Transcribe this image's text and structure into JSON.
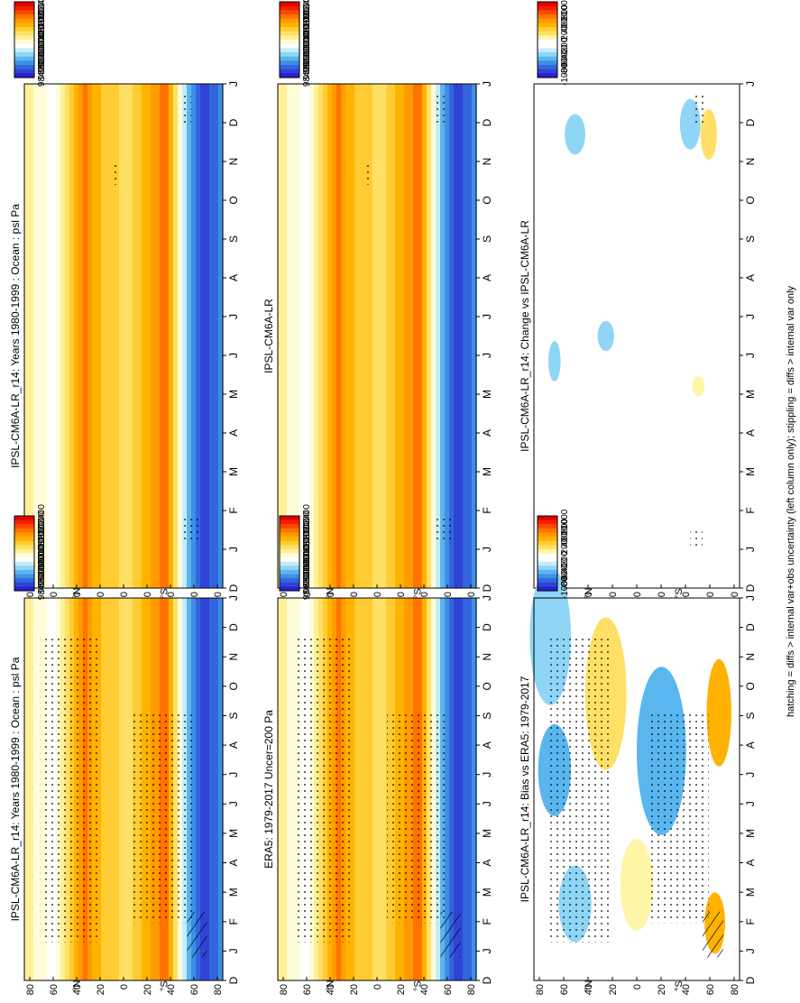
{
  "figure": {
    "footer": "hatching = diffs > internal var+obs uncertainty (left column only); stippling = diffs > internal var only"
  },
  "colors": {
    "abs": [
      "#e60000",
      "#f42000",
      "#fb4a00",
      "#ff7300",
      "#ff9a00",
      "#ffb300",
      "#ffcc33",
      "#ffe066",
      "#fff099",
      "#fffcd9",
      "#ffffff",
      "#c6ecfb",
      "#8fd5f5",
      "#5ab6ee",
      "#3f8fe5",
      "#3366dd",
      "#2f44d6",
      "#2a1fcf"
    ],
    "diff": [
      "#e60000",
      "#f42000",
      "#fb4a00",
      "#ff7300",
      "#ff9a00",
      "#ffb300",
      "#ffcc33",
      "#ffe066",
      "#fff5a6",
      "#ffffff",
      "#ffffff",
      "#c6ecfb",
      "#8fd5f5",
      "#5ab6ee",
      "#3f8fe5",
      "#3366dd",
      "#2f44d6",
      "#2a1fcf"
    ]
  },
  "chart_data": [
    {
      "id": "p1",
      "type": "heatmap",
      "title": "IPSL-CM6A-LR_r14: Years 1980-1999 : Ocean : psl Pa",
      "x_ticks": [
        "J",
        "F",
        "M",
        "A",
        "M",
        "J",
        "J",
        "A",
        "S",
        "O",
        "N",
        "D",
        "J"
      ],
      "y_ticks": [
        "80",
        "60",
        "40",
        "20",
        "0",
        "20",
        "40",
        "60",
        "80"
      ],
      "y_extra": [
        "°N",
        "°S"
      ],
      "x_left": "D",
      "colorbar": [
        "102400",
        "102000",
        "101600",
        "101200",
        "100800",
        "100400",
        "100000",
        "99600",
        "99200",
        "98800",
        "98400"
      ],
      "palette": "abs"
    },
    {
      "id": "p2",
      "type": "heatmap",
      "title": "IPSL-CM6A-LR_r14: Years 1980-1999 : Ocean : psl Pa",
      "x_ticks": [
        "J",
        "F",
        "M",
        "A",
        "M",
        "J",
        "J",
        "A",
        "S",
        "O",
        "N",
        "D",
        "J"
      ],
      "y_ticks": [
        "80",
        "60",
        "40",
        "20",
        "0",
        "20",
        "40",
        "60",
        "80"
      ],
      "y_extra": [
        "°N",
        "°S"
      ],
      "x_left": "D",
      "colorbar": [
        "102400",
        "102000",
        "101600",
        "101200",
        "100800",
        "100400",
        "100000",
        "99600",
        "99200",
        "98800",
        "98400"
      ],
      "palette": "abs"
    },
    {
      "id": "p3",
      "type": "heatmap",
      "title": "ERA5: 1979-2017 Uncer=200 Pa",
      "x_ticks": [
        "J",
        "F",
        "M",
        "A",
        "M",
        "J",
        "J",
        "A",
        "S",
        "O",
        "N",
        "D",
        "J"
      ],
      "y_ticks": [
        "80",
        "60",
        "40",
        "20",
        "0",
        "20",
        "40",
        "60",
        "80"
      ],
      "y_extra": [
        "°N",
        "°S"
      ],
      "x_left": "D",
      "colorbar": [
        "102400",
        "102000",
        "101600",
        "101200",
        "100800",
        "100400",
        "100000",
        "99600",
        "99200",
        "98800",
        "98400"
      ],
      "palette": "abs"
    },
    {
      "id": "p4",
      "type": "heatmap",
      "title": "IPSL-CM6A-LR",
      "x_ticks": [
        "J",
        "F",
        "M",
        "A",
        "M",
        "J",
        "J",
        "A",
        "S",
        "O",
        "N",
        "D",
        "J"
      ],
      "y_ticks": [
        "80",
        "60",
        "40",
        "20",
        "0",
        "20",
        "40",
        "60",
        "80"
      ],
      "y_extra": [
        "°N",
        "°S"
      ],
      "x_left": "D",
      "colorbar": [
        "102400",
        "102000",
        "101600",
        "101200",
        "100800",
        "100400",
        "100000",
        "99600",
        "99200",
        "98800",
        "98400"
      ],
      "palette": "abs"
    },
    {
      "id": "p5",
      "type": "heatmap",
      "title": "IPSL-CM6A-LR_r14: Bias vs ERA5: 1979-2017",
      "x_ticks": [
        "J",
        "F",
        "M",
        "A",
        "M",
        "J",
        "J",
        "A",
        "S",
        "O",
        "N",
        "D",
        "J"
      ],
      "y_ticks": [
        "80",
        "60",
        "40",
        "20",
        "0",
        "20",
        "40",
        "60",
        "80"
      ],
      "y_extra": [
        "°N",
        "°S"
      ],
      "x_left": "D",
      "colorbar": [
        "1000",
        "800",
        "600",
        "400",
        "200",
        "0",
        "-200",
        "-400",
        "-600",
        "-800",
        "-1000"
      ],
      "palette": "diff"
    },
    {
      "id": "p6",
      "type": "heatmap",
      "title": "IPSL-CM6A-LR_r14: Change vs IPSL-CM6A-LR",
      "x_ticks": [
        "J",
        "F",
        "M",
        "A",
        "M",
        "J",
        "J",
        "A",
        "S",
        "O",
        "N",
        "D",
        "J"
      ],
      "y_ticks": [
        "80",
        "60",
        "40",
        "20",
        "0",
        "20",
        "40",
        "60",
        "80"
      ],
      "y_extra": [
        "°N",
        "°S"
      ],
      "x_left": "D",
      "colorbar": [
        "1000",
        "800",
        "600",
        "400",
        "200",
        "0",
        "-200",
        "-400",
        "-600",
        "-800",
        "-1000"
      ],
      "palette": "diff"
    }
  ]
}
